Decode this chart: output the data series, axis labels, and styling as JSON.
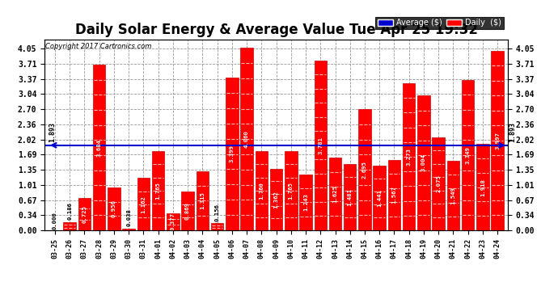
{
  "title": "Daily Solar Energy & Average Value Tue Apr 25 19:32",
  "copyright": "Copyright 2017 Cartronics.com",
  "average_value": 1.893,
  "categories": [
    "03-25",
    "03-26",
    "03-27",
    "03-28",
    "03-29",
    "03-30",
    "03-31",
    "04-01",
    "04-02",
    "04-03",
    "04-04",
    "04-05",
    "04-06",
    "04-07",
    "04-08",
    "04-09",
    "04-10",
    "04-11",
    "04-12",
    "04-13",
    "04-14",
    "04-15",
    "04-16",
    "04-17",
    "04-18",
    "04-19",
    "04-20",
    "04-21",
    "04-22",
    "04-23",
    "04-24"
  ],
  "values": [
    0.0,
    0.186,
    0.725,
    3.684,
    0.956,
    0.038,
    1.162,
    1.765,
    0.377,
    0.869,
    1.315,
    0.156,
    3.399,
    4.06,
    1.76,
    1.362,
    1.765,
    1.243,
    3.781,
    1.625,
    1.481,
    2.695,
    1.441,
    1.567,
    3.273,
    3.004,
    2.075,
    1.549,
    3.349,
    1.918,
    3.997
  ],
  "bar_color": "#ff0000",
  "average_line_color": "#0000cc",
  "background_color": "#ffffff",
  "grid_color": "#999999",
  "yticks": [
    0.0,
    0.34,
    0.67,
    1.01,
    1.35,
    1.69,
    2.02,
    2.36,
    2.7,
    3.04,
    3.37,
    3.71,
    4.05
  ],
  "ylim_max": 4.25,
  "title_fontsize": 12,
  "xtick_fontsize": 6,
  "ytick_fontsize": 7,
  "value_fontsize": 5.2,
  "avg_label_fontsize": 6,
  "legend_avg_label": "Average ($)",
  "legend_daily_label": "Daily  ($)"
}
